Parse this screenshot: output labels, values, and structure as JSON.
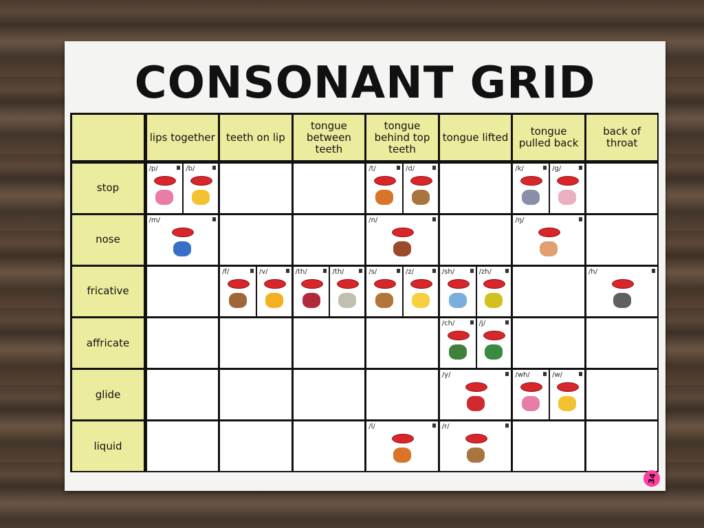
{
  "title": "CONSONANT GRID",
  "table": {
    "columns": [
      "lips together",
      "teeth on lip",
      "tongue between teeth",
      "tongue behind top teeth",
      "tongue lifted",
      "tongue pulled back",
      "back of throat"
    ],
    "rows": [
      {
        "label": "stop",
        "cells": [
          [
            "/p/",
            "/b/"
          ],
          [],
          [],
          [
            "/t/",
            "/d/"
          ],
          [],
          [
            "/k/",
            "/g/"
          ],
          []
        ]
      },
      {
        "label": "nose",
        "cells": [
          [
            "/m/"
          ],
          [],
          [],
          [
            "/n/"
          ],
          [],
          [
            "/ŋ/"
          ],
          []
        ]
      },
      {
        "label": "fricative",
        "cells": [
          [],
          [
            "/f/",
            "/v/"
          ],
          [
            "/th/",
            "/th/"
          ],
          [
            "/s/",
            "/z/"
          ],
          [
            "/sh/",
            "/zh/"
          ],
          [],
          [
            "/h/"
          ]
        ]
      },
      {
        "label": "affricate",
        "cells": [
          [],
          [],
          [],
          [],
          [
            "/ch/",
            "/j/"
          ],
          [],
          []
        ]
      },
      {
        "label": "glide",
        "cells": [
          [],
          [],
          [],
          [],
          [
            "/y/"
          ],
          [
            "/wh/",
            "/w/"
          ],
          []
        ]
      },
      {
        "label": "liquid",
        "cells": [
          [],
          [],
          [],
          [
            "/l/"
          ],
          [
            "/r/"
          ],
          [],
          []
        ]
      }
    ]
  },
  "sticker": "34"
}
